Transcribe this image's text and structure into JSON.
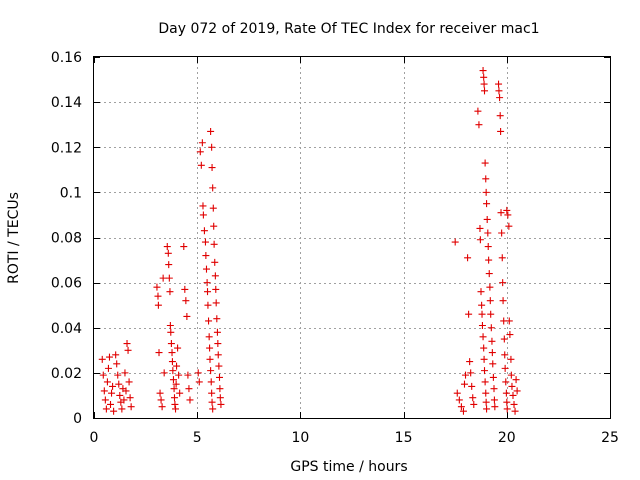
{
  "chart_data": {
    "type": "scatter",
    "title": "Day 072 of 2019, Rate Of TEC Index for receiver mac1",
    "xlabel": "GPS time / hours",
    "ylabel": "ROTI / TECUs",
    "xlim": [
      0,
      25
    ],
    "ylim": [
      0,
      0.16
    ],
    "x_ticks": [
      0,
      5,
      10,
      15,
      20,
      25
    ],
    "x_tick_labels": [
      "0",
      "5",
      "10",
      "15",
      "20",
      "25"
    ],
    "y_ticks": [
      0,
      0.02,
      0.04,
      0.06,
      0.08,
      0.1,
      0.12,
      0.14,
      0.16
    ],
    "y_tick_labels": [
      "0",
      "0.02",
      "0.04",
      "0.06",
      "0.08",
      "0.1",
      "0.12",
      "0.14",
      "0.16"
    ],
    "grid": true,
    "marker": "plus",
    "marker_color": "#e00000",
    "series": [
      {
        "name": "ROTI",
        "points": [
          [
            0.4,
            0.026
          ],
          [
            0.45,
            0.019
          ],
          [
            0.5,
            0.012
          ],
          [
            0.55,
            0.008
          ],
          [
            0.6,
            0.004
          ],
          [
            0.65,
            0.016
          ],
          [
            0.7,
            0.022
          ],
          [
            0.75,
            0.027
          ],
          [
            0.8,
            0.006
          ],
          [
            0.85,
            0.011
          ],
          [
            0.9,
            0.014
          ],
          [
            0.95,
            0.003
          ],
          [
            1.05,
            0.028
          ],
          [
            1.1,
            0.024
          ],
          [
            1.15,
            0.019
          ],
          [
            1.2,
            0.015
          ],
          [
            1.25,
            0.01
          ],
          [
            1.3,
            0.007
          ],
          [
            1.35,
            0.004
          ],
          [
            1.4,
            0.013
          ],
          [
            1.45,
            0.008
          ],
          [
            1.5,
            0.02
          ],
          [
            1.55,
            0.012
          ],
          [
            1.6,
            0.033
          ],
          [
            1.65,
            0.03
          ],
          [
            1.7,
            0.016
          ],
          [
            1.75,
            0.009
          ],
          [
            1.8,
            0.005
          ],
          [
            3.05,
            0.058
          ],
          [
            3.1,
            0.054
          ],
          [
            3.12,
            0.05
          ],
          [
            3.15,
            0.029
          ],
          [
            3.2,
            0.011
          ],
          [
            3.25,
            0.008
          ],
          [
            3.3,
            0.005
          ],
          [
            3.35,
            0.062
          ],
          [
            3.4,
            0.02
          ],
          [
            3.55,
            0.076
          ],
          [
            3.6,
            0.073
          ],
          [
            3.62,
            0.068
          ],
          [
            3.65,
            0.062
          ],
          [
            3.68,
            0.056
          ],
          [
            3.7,
            0.041
          ],
          [
            3.72,
            0.038
          ],
          [
            3.75,
            0.033
          ],
          [
            3.78,
            0.029
          ],
          [
            3.8,
            0.025
          ],
          [
            3.82,
            0.021
          ],
          [
            3.85,
            0.017
          ],
          [
            3.88,
            0.013
          ],
          [
            3.9,
            0.009
          ],
          [
            3.92,
            0.006
          ],
          [
            3.95,
            0.004
          ],
          [
            3.98,
            0.015
          ],
          [
            4.0,
            0.023
          ],
          [
            4.05,
            0.031
          ],
          [
            4.1,
            0.019
          ],
          [
            4.15,
            0.011
          ],
          [
            4.35,
            0.076
          ],
          [
            4.4,
            0.057
          ],
          [
            4.45,
            0.052
          ],
          [
            4.5,
            0.045
          ],
          [
            4.55,
            0.019
          ],
          [
            4.6,
            0.013
          ],
          [
            4.65,
            0.008
          ],
          [
            5.05,
            0.02
          ],
          [
            5.1,
            0.016
          ],
          [
            5.15,
            0.118
          ],
          [
            5.2,
            0.112
          ],
          [
            5.25,
            0.122
          ],
          [
            5.28,
            0.094
          ],
          [
            5.3,
            0.09
          ],
          [
            5.35,
            0.083
          ],
          [
            5.4,
            0.078
          ],
          [
            5.42,
            0.072
          ],
          [
            5.45,
            0.066
          ],
          [
            5.48,
            0.06
          ],
          [
            5.5,
            0.056
          ],
          [
            5.52,
            0.05
          ],
          [
            5.55,
            0.043
          ],
          [
            5.58,
            0.036
          ],
          [
            5.6,
            0.031
          ],
          [
            5.62,
            0.026
          ],
          [
            5.65,
            0.021
          ],
          [
            5.68,
            0.016
          ],
          [
            5.7,
            0.011
          ],
          [
            5.72,
            0.007
          ],
          [
            5.75,
            0.004
          ],
          [
            5.65,
            0.127
          ],
          [
            5.7,
            0.12
          ],
          [
            5.72,
            0.111
          ],
          [
            5.75,
            0.102
          ],
          [
            5.78,
            0.093
          ],
          [
            5.8,
            0.085
          ],
          [
            5.82,
            0.077
          ],
          [
            5.85,
            0.069
          ],
          [
            5.88,
            0.063
          ],
          [
            5.9,
            0.057
          ],
          [
            5.92,
            0.051
          ],
          [
            5.95,
            0.044
          ],
          [
            5.98,
            0.038
          ],
          [
            6.0,
            0.033
          ],
          [
            6.02,
            0.028
          ],
          [
            6.05,
            0.023
          ],
          [
            6.08,
            0.018
          ],
          [
            6.1,
            0.013
          ],
          [
            6.12,
            0.009
          ],
          [
            6.15,
            0.006
          ],
          [
            17.5,
            0.078
          ],
          [
            17.6,
            0.011
          ],
          [
            17.7,
            0.008
          ],
          [
            17.8,
            0.005
          ],
          [
            17.9,
            0.003
          ],
          [
            17.95,
            0.015
          ],
          [
            18.0,
            0.019
          ],
          [
            18.1,
            0.071
          ],
          [
            18.15,
            0.046
          ],
          [
            18.2,
            0.025
          ],
          [
            18.25,
            0.02
          ],
          [
            18.3,
            0.014
          ],
          [
            18.35,
            0.009
          ],
          [
            18.4,
            0.006
          ],
          [
            18.6,
            0.136
          ],
          [
            18.65,
            0.13
          ],
          [
            18.7,
            0.084
          ],
          [
            18.72,
            0.079
          ],
          [
            18.75,
            0.056
          ],
          [
            18.78,
            0.05
          ],
          [
            18.8,
            0.046
          ],
          [
            18.82,
            0.041
          ],
          [
            18.85,
            0.036
          ],
          [
            18.88,
            0.031
          ],
          [
            18.9,
            0.026
          ],
          [
            18.92,
            0.021
          ],
          [
            18.95,
            0.016
          ],
          [
            18.98,
            0.011
          ],
          [
            19.0,
            0.007
          ],
          [
            19.02,
            0.004
          ],
          [
            18.85,
            0.154
          ],
          [
            18.88,
            0.151
          ],
          [
            18.9,
            0.148
          ],
          [
            18.92,
            0.145
          ],
          [
            18.95,
            0.113
          ],
          [
            18.98,
            0.106
          ],
          [
            19.0,
            0.1
          ],
          [
            19.02,
            0.095
          ],
          [
            19.05,
            0.088
          ],
          [
            19.08,
            0.082
          ],
          [
            19.1,
            0.076
          ],
          [
            19.12,
            0.07
          ],
          [
            19.15,
            0.064
          ],
          [
            19.18,
            0.058
          ],
          [
            19.2,
            0.052
          ],
          [
            19.22,
            0.046
          ],
          [
            19.25,
            0.04
          ],
          [
            19.28,
            0.034
          ],
          [
            19.3,
            0.029
          ],
          [
            19.32,
            0.024
          ],
          [
            19.35,
            0.018
          ],
          [
            19.38,
            0.013
          ],
          [
            19.4,
            0.008
          ],
          [
            19.42,
            0.005
          ],
          [
            19.6,
            0.148
          ],
          [
            19.62,
            0.145
          ],
          [
            19.65,
            0.142
          ],
          [
            19.68,
            0.134
          ],
          [
            19.7,
            0.127
          ],
          [
            19.72,
            0.091
          ],
          [
            19.75,
            0.082
          ],
          [
            19.78,
            0.071
          ],
          [
            19.8,
            0.06
          ],
          [
            19.82,
            0.052
          ],
          [
            19.85,
            0.043
          ],
          [
            19.88,
            0.035
          ],
          [
            19.9,
            0.028
          ],
          [
            19.92,
            0.022
          ],
          [
            19.95,
            0.016
          ],
          [
            19.98,
            0.011
          ],
          [
            20.0,
            0.007
          ],
          [
            20.02,
            0.004
          ],
          [
            20.0,
            0.092
          ],
          [
            20.05,
            0.09
          ],
          [
            20.1,
            0.085
          ],
          [
            20.12,
            0.043
          ],
          [
            20.15,
            0.037
          ],
          [
            20.2,
            0.026
          ],
          [
            20.22,
            0.019
          ],
          [
            20.25,
            0.014
          ],
          [
            20.3,
            0.01
          ],
          [
            20.35,
            0.006
          ],
          [
            20.4,
            0.003
          ],
          [
            20.45,
            0.017
          ],
          [
            20.5,
            0.012
          ]
        ]
      }
    ]
  }
}
